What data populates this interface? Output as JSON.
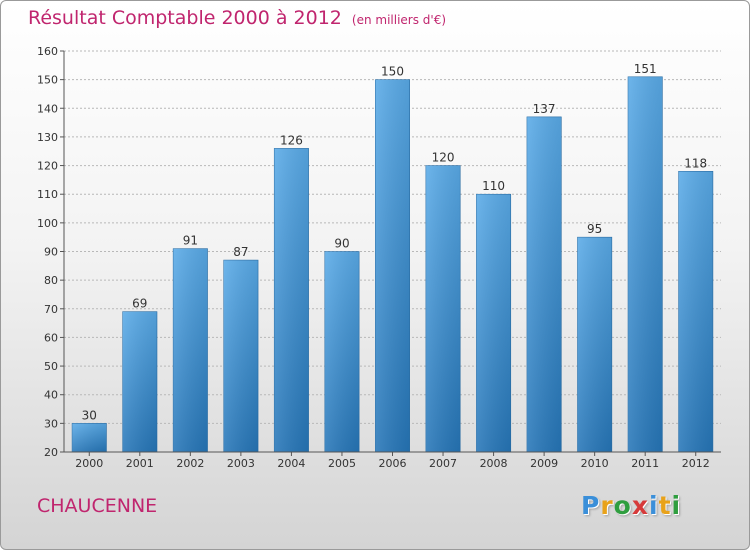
{
  "title": "Résultat Comptable 2000 à 2012",
  "subtitle": "(en milliers d'€)",
  "place_name": "CHAUCENNE",
  "logo_letters": [
    "P",
    "r",
    "o",
    "x",
    "i",
    "t",
    "i"
  ],
  "logo_colors": [
    "#3a8fd9",
    "#e8a21a",
    "#2f9e3f",
    "#d63a3a",
    "#3a8fd9",
    "#e8a21a",
    "#2f9e3f"
  ],
  "colors": {
    "bar_top": "#5aabe8",
    "bar_bottom": "#2676b8",
    "accent": "#c0256e"
  },
  "chart_data": {
    "type": "bar",
    "title": "Résultat Comptable 2000 à 2012",
    "subtitle": "(en milliers d'€)",
    "xlabel": "",
    "ylabel": "",
    "categories": [
      "2000",
      "2001",
      "2002",
      "2003",
      "2004",
      "2005",
      "2006",
      "2007",
      "2008",
      "2009",
      "2010",
      "2011",
      "2012"
    ],
    "values": [
      30,
      69,
      91,
      87,
      126,
      90,
      150,
      120,
      110,
      137,
      95,
      151,
      118
    ],
    "ylim": [
      20,
      160
    ],
    "yticks": [
      20,
      30,
      40,
      50,
      60,
      70,
      80,
      90,
      100,
      110,
      120,
      130,
      140,
      150,
      160
    ],
    "grid": true,
    "legend": "none"
  }
}
